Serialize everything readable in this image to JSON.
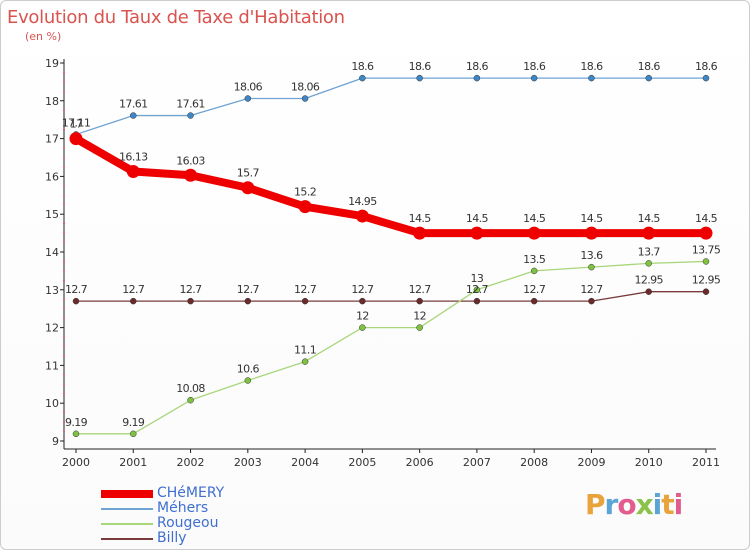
{
  "title": "Evolution du Taux de Taxe d'Habitation",
  "subtitle": "(en %)",
  "logo_text": "Proxiti",
  "logo_colors": [
    "#e8a33a",
    "#5aa4d6",
    "#e25c8e",
    "#8bc34a",
    "#5aa4d6",
    "#e8a33a",
    "#e25c8e"
  ],
  "chart_data": {
    "type": "line",
    "x": [
      "2000",
      "2001",
      "2002",
      "2003",
      "2004",
      "2005",
      "2006",
      "2007",
      "2008",
      "2009",
      "2010",
      "2011"
    ],
    "ylim": [
      9,
      19
    ],
    "yticks": [
      "9",
      "10",
      "11",
      "12",
      "13",
      "14",
      "15",
      "16",
      "17",
      "18",
      "19"
    ],
    "grid": false,
    "legend_position": "bottom-left",
    "series": [
      {
        "name": "Méhers",
        "color": "#6fa3d2",
        "marker_color": "#3f86c6",
        "style": "thin",
        "values": [
          17.11,
          17.61,
          17.61,
          18.06,
          18.06,
          18.6,
          18.6,
          18.6,
          18.6,
          18.6,
          18.6,
          18.6
        ],
        "labels": [
          "17.11",
          "17.61",
          "17.61",
          "18.06",
          "18.06",
          "18.6",
          "18.6",
          "18.6",
          "18.6",
          "18.6",
          "18.6",
          "18.6"
        ]
      },
      {
        "name": "Billy",
        "color": "#7a3b3b",
        "marker_color": "#6b2b2b",
        "style": "thin",
        "values": [
          12.7,
          12.7,
          12.7,
          12.7,
          12.7,
          12.7,
          12.7,
          12.7,
          12.7,
          12.7,
          12.95,
          12.95
        ],
        "labels": [
          "12.7",
          "12.7",
          "12.7",
          "12.7",
          "12.7",
          "12.7",
          "12.7",
          "12.7",
          "12.7",
          "12.7",
          "12.95",
          "12.95"
        ]
      },
      {
        "name": "Rougeou",
        "color": "#a8d67a",
        "marker_color": "#7fc241",
        "style": "thin",
        "values": [
          9.19,
          9.19,
          10.08,
          10.6,
          11.1,
          12,
          12,
          13,
          13.5,
          13.6,
          13.7,
          13.75
        ],
        "labels": [
          "9.19",
          "9.19",
          "10.08",
          "10.6",
          "11.1",
          "12",
          "12",
          "13",
          "13.5",
          "13.6",
          "13.7",
          "13.75"
        ]
      },
      {
        "name": "CHéMERY",
        "color": "#ee0000",
        "marker_color": "#ee0000",
        "style": "thick",
        "values": [
          17,
          16.13,
          16.03,
          15.7,
          15.2,
          14.95,
          14.5,
          14.5,
          14.5,
          14.5,
          14.5,
          14.5
        ],
        "labels": [
          "17",
          "16.13",
          "16.03",
          "15.7",
          "15.2",
          "14.95",
          "14.5",
          "14.5",
          "14.5",
          "14.5",
          "14.5",
          "14.5"
        ]
      }
    ],
    "legend": [
      "CHéMERY",
      "Méhers",
      "Rougeou",
      "Billy"
    ]
  }
}
